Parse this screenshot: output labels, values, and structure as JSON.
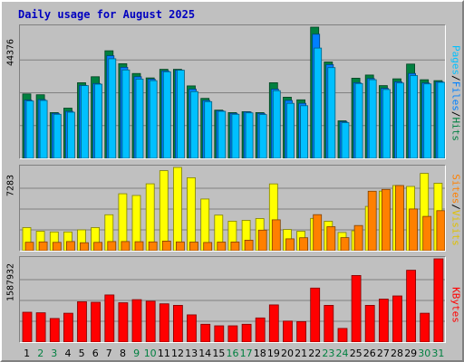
{
  "chart_data": [
    {
      "type": "bar",
      "title": "Daily usage for August 2025",
      "categories": [
        "1",
        "2",
        "3",
        "4",
        "5",
        "6",
        "7",
        "8",
        "9",
        "10",
        "11",
        "12",
        "13",
        "14",
        "15",
        "16",
        "17",
        "18",
        "19",
        "20",
        "21",
        "22",
        "23",
        "24",
        "25",
        "26",
        "27",
        "28",
        "29",
        "30",
        "31"
      ],
      "weekend_days": [
        "2",
        "3",
        "9",
        "10",
        "16",
        "17",
        "23",
        "24",
        "30",
        "31"
      ],
      "ymax_label": "44376",
      "ylim": [
        0,
        44376
      ],
      "legend": [
        "Pages",
        "Files",
        "Hits"
      ],
      "series": [
        {
          "name": "Hits",
          "color": "#008040",
          "values": [
            21800,
            21500,
            15500,
            17000,
            25600,
            27600,
            36400,
            32000,
            28700,
            27200,
            30100,
            30100,
            24500,
            20300,
            16300,
            15500,
            15800,
            15500,
            25600,
            20700,
            19800,
            44376,
            32600,
            12700,
            27100,
            28200,
            24600,
            26900,
            31900,
            26600,
            26300
          ]
        },
        {
          "name": "Files",
          "color": "#0080ff",
          "values": [
            19700,
            19900,
            15200,
            15900,
            24700,
            25300,
            34700,
            30800,
            27600,
            26800,
            29600,
            29800,
            23400,
            19600,
            16100,
            15200,
            15700,
            15200,
            23400,
            19600,
            18600,
            42000,
            31700,
            12400,
            25600,
            27000,
            23700,
            25900,
            28700,
            25500,
            25900
          ]
        },
        {
          "name": "Pages",
          "color": "#00c0ff",
          "values": [
            19400,
            19600,
            14900,
            15600,
            24600,
            25100,
            33700,
            29900,
            26800,
            26300,
            29300,
            29800,
            22600,
            19200,
            15900,
            14900,
            15400,
            14800,
            22900,
            18600,
            17800,
            37300,
            30700,
            12100,
            25300,
            26600,
            23300,
            25500,
            28000,
            25200,
            25700
          ]
        }
      ]
    },
    {
      "type": "bar",
      "ymax_label": "7283",
      "ylim": [
        0,
        7283
      ],
      "legend": [
        "Sites",
        "Visits"
      ],
      "series": [
        {
          "name": "Visits",
          "color": "#ffff00",
          "values": [
            2020,
            1700,
            1640,
            1640,
            1820,
            2020,
            3140,
            4980,
            4830,
            5850,
            7000,
            7283,
            6380,
            4520,
            3110,
            2580,
            2650,
            2810,
            5840,
            1850,
            1700,
            2830,
            2570,
            1590,
            1740,
            3870,
            5210,
            5700,
            5620,
            6760,
            5900
          ]
        },
        {
          "name": "Sites",
          "color": "#ff8000",
          "values": [
            740,
            770,
            730,
            800,
            700,
            730,
            800,
            800,
            780,
            770,
            840,
            770,
            750,
            720,
            750,
            760,
            920,
            1800,
            2700,
            1040,
            1130,
            3150,
            2100,
            1140,
            2200,
            5200,
            5360,
            5700,
            3650,
            3000,
            3500
          ]
        }
      ]
    },
    {
      "type": "bar",
      "ymax_label": "1587932",
      "ylim": [
        0,
        1587932
      ],
      "legend": [
        "KBytes"
      ],
      "series": [
        {
          "name": "KBytes",
          "color": "#ff0000",
          "values": [
            570000,
            560000,
            450000,
            550000,
            770000,
            760000,
            900000,
            750000,
            810000,
            780000,
            730000,
            700000,
            520000,
            340000,
            310000,
            310000,
            340000,
            460000,
            710000,
            400000,
            390000,
            1030000,
            700000,
            260000,
            1270000,
            700000,
            820000,
            880000,
            1370000,
            550000,
            1587932
          ]
        }
      ]
    }
  ]
}
